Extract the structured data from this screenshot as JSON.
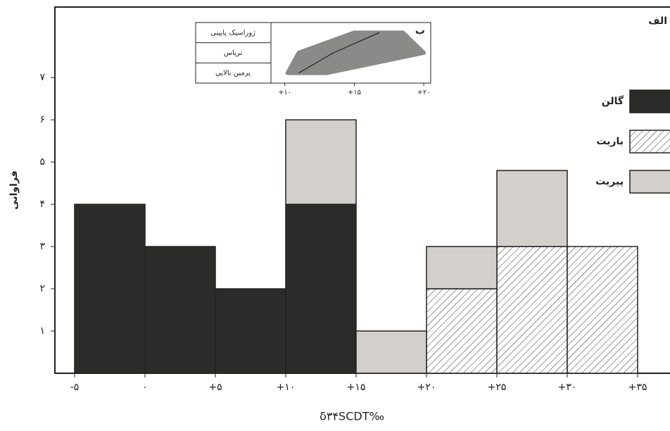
{
  "chart_data": [
    {
      "type": "histogram",
      "label": "الف",
      "y_label": "فراوانی",
      "x_label": "δ۳۴SCDT‰",
      "bins": [
        -5,
        0,
        5,
        10,
        15,
        20,
        25,
        30,
        35
      ],
      "series": [
        {
          "name": "گالن",
          "color": "#2b2c29",
          "values": [
            4,
            3,
            2,
            4,
            0,
            0,
            0,
            0
          ]
        },
        {
          "name": "باریت",
          "color": "#ffffff",
          "pattern": "diagonal-hatch",
          "values": [
            0,
            0,
            0,
            0,
            0,
            2,
            3,
            3
          ]
        },
        {
          "name": "پیریت",
          "color": "#d3d0cb",
          "values": [
            0,
            0,
            0,
            2,
            1,
            1,
            1.8,
            0
          ]
        }
      ],
      "xlim": [
        -6.4,
        37.3
      ],
      "ylim": [
        0,
        8.67
      ],
      "xticks": [
        {
          "value": -5,
          "label": "-۵"
        },
        {
          "value": 0,
          "label": "۰"
        },
        {
          "value": 5,
          "label": "+۵"
        },
        {
          "value": 10,
          "label": "+۱۰"
        },
        {
          "value": 15,
          "label": "+۱۵"
        },
        {
          "value": 20,
          "label": "+۲۰"
        },
        {
          "value": 25,
          "label": "+۲۵"
        },
        {
          "value": 30,
          "label": "+۳۰"
        },
        {
          "value": 35,
          "label": "+۳۵"
        }
      ],
      "yticks": [
        {
          "value": 1,
          "label": "۱"
        },
        {
          "value": 2,
          "label": "۲"
        },
        {
          "value": 3,
          "label": "۳"
        },
        {
          "value": 4,
          "label": "۴"
        },
        {
          "value": 5,
          "label": "۵"
        },
        {
          "value": 6,
          "label": "۶"
        },
        {
          "value": 7,
          "label": "۷"
        }
      ],
      "legend": "right"
    },
    {
      "type": "range",
      "label": "ب",
      "color": "#8a8a88",
      "line_color": "#222222",
      "categories": [
        "ژوراسیک پایینی",
        "ترياس",
        "پرمین بالایی"
      ],
      "low": [
        15,
        11,
        10.2
      ],
      "center": [
        16.8,
        13.5,
        11
      ],
      "high": [
        18.5,
        20,
        13
      ],
      "xlim": [
        9,
        20.5
      ],
      "xticks": [
        {
          "value": 10,
          "label": "+۱۰"
        },
        {
          "value": 15,
          "label": "+۱۵"
        },
        {
          "value": 20,
          "label": "+۲۰"
        }
      ]
    }
  ]
}
